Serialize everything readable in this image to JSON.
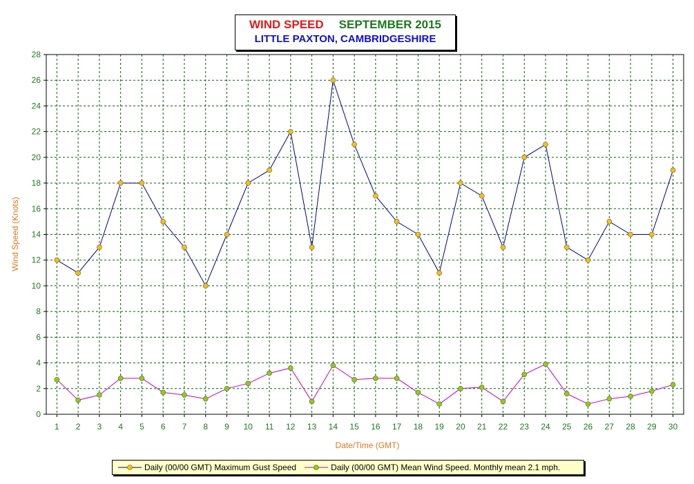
{
  "title": {
    "part1": "WIND SPEED",
    "part2": "SEPTEMBER 2015",
    "line2": "LITTLE PAXTON, CAMBRIDGESHIRE"
  },
  "colors": {
    "gust_line": "#000080",
    "gust_marker": "#ffc000",
    "mean_line": "#c000c0",
    "mean_marker": "#90d000",
    "tick_label": "#1c7a1c",
    "axis_title": "#e07820",
    "legend_bg": "#ffffc8"
  },
  "chart_data": {
    "type": "line",
    "xlabel": "Date/Time (GMT)",
    "ylabel": "Wind Speed (Knots)",
    "ylim": [
      0,
      28
    ],
    "ytick_step": 2,
    "grid": true,
    "legend_position": "bottom",
    "categories": [
      "1",
      "2",
      "3",
      "4",
      "5",
      "6",
      "7",
      "8",
      "9",
      "10",
      "11",
      "12",
      "13",
      "14",
      "15",
      "16",
      "17",
      "18",
      "19",
      "20",
      "21",
      "22",
      "23",
      "24",
      "25",
      "26",
      "27",
      "28",
      "29",
      "30"
    ],
    "series": [
      {
        "name": "Daily (00/00 GMT) Maximum Gust Speed",
        "values": [
          12,
          11,
          13,
          18,
          18,
          15,
          13,
          10,
          14,
          18,
          19,
          22,
          13,
          26,
          21,
          17,
          15,
          14,
          11,
          18,
          17,
          13,
          20,
          21,
          13,
          12,
          15,
          14,
          14,
          19
        ]
      },
      {
        "name": "Daily (00/00 GMT) Mean Wind Speed. Monthly mean 2.1 mph.",
        "values": [
          2.7,
          1.1,
          1.5,
          2.8,
          2.8,
          1.7,
          1.5,
          1.2,
          2.0,
          2.4,
          3.2,
          3.6,
          1.0,
          3.8,
          2.7,
          2.8,
          2.8,
          1.7,
          0.8,
          2.0,
          2.1,
          1.0,
          3.1,
          3.9,
          1.6,
          0.8,
          1.2,
          1.4,
          1.8,
          2.3
        ]
      }
    ]
  }
}
